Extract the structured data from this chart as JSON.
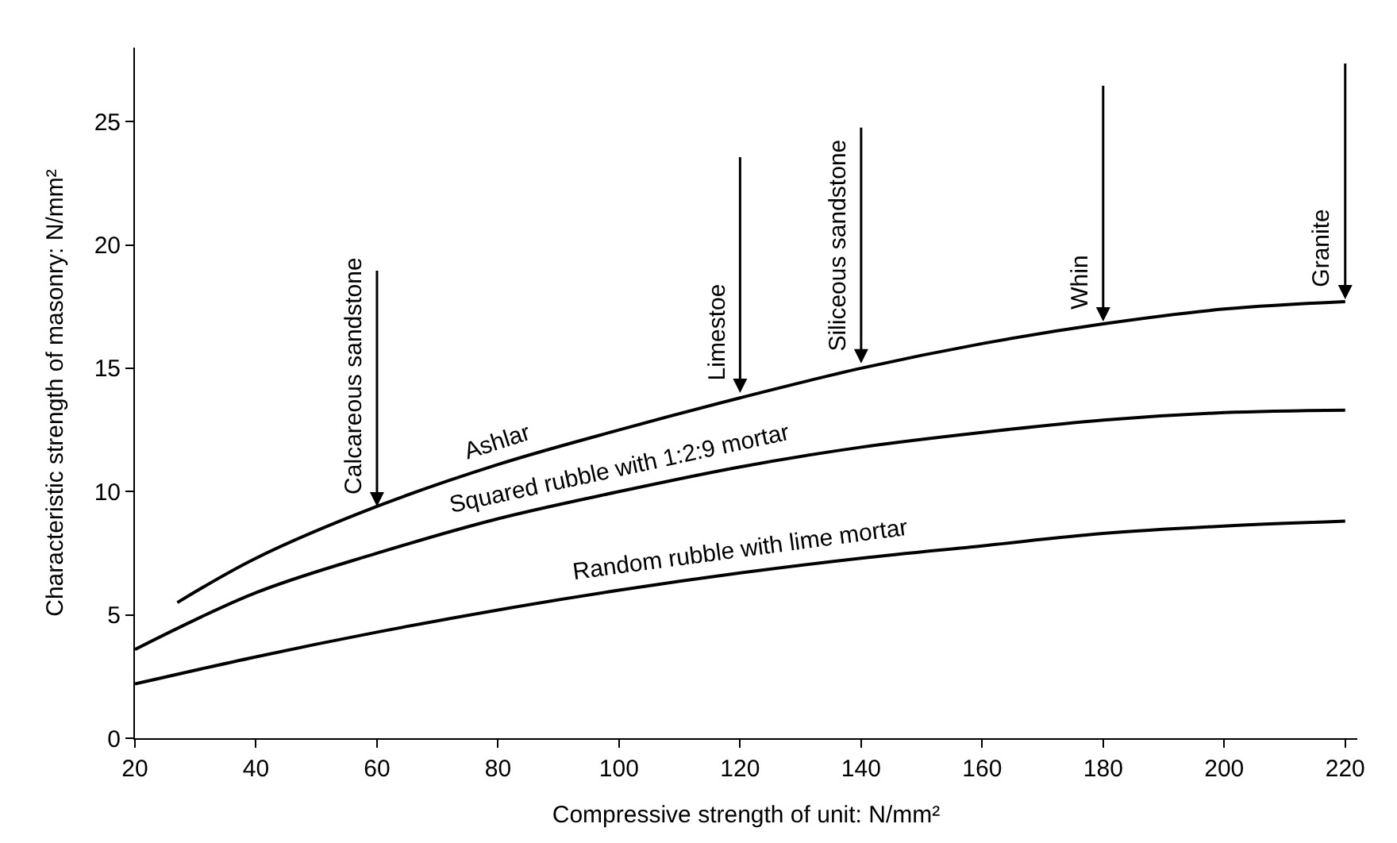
{
  "chart_data": {
    "type": "line",
    "xlabel": "Compressive strength of unit: N/mm²",
    "ylabel": "Characteristic strength of masonry: N/mm²",
    "series": [
      {
        "name": "Ashlar",
        "color": "#000000",
        "x": [
          27,
          40,
          60,
          80,
          100,
          120,
          140,
          160,
          180,
          200,
          220
        ],
        "values": [
          5.5,
          7.3,
          9.4,
          11.1,
          12.5,
          13.8,
          15.0,
          16.0,
          16.8,
          17.4,
          17.7
        ]
      },
      {
        "name": "Squared rubble with 1:2:9 mortar",
        "color": "#000000",
        "x": [
          20,
          40,
          60,
          80,
          100,
          120,
          140,
          160,
          180,
          200,
          220
        ],
        "values": [
          3.6,
          5.9,
          7.5,
          8.9,
          10.0,
          11.0,
          11.8,
          12.4,
          12.9,
          13.2,
          13.3
        ]
      },
      {
        "name": "Random rubble with lime mortar",
        "color": "#000000",
        "x": [
          20,
          40,
          60,
          80,
          100,
          120,
          140,
          160,
          180,
          200,
          220
        ],
        "values": [
          2.2,
          3.3,
          4.3,
          5.2,
          6.0,
          6.7,
          7.3,
          7.8,
          8.3,
          8.6,
          8.8
        ]
      }
    ],
    "annotations": [
      {
        "text": "Calcareous sandstone",
        "x": 60,
        "y": 9.4
      },
      {
        "text": "Limestoe",
        "x": 120,
        "y": 14.0
      },
      {
        "text": "Siliceous sandstone",
        "x": 140,
        "y": 15.2
      },
      {
        "text": "Whin",
        "x": 180,
        "y": 16.9
      },
      {
        "text": "Granite",
        "x": 220,
        "y": 17.8
      }
    ],
    "xlim": [
      20,
      222
    ],
    "xticks": [
      20,
      40,
      60,
      80,
      100,
      120,
      140,
      160,
      180,
      200,
      220
    ],
    "ylim": [
      0,
      28
    ],
    "yticks": [
      0,
      5,
      10,
      15,
      20,
      25
    ],
    "grid": false,
    "marker": "none",
    "line_style": "solid"
  }
}
